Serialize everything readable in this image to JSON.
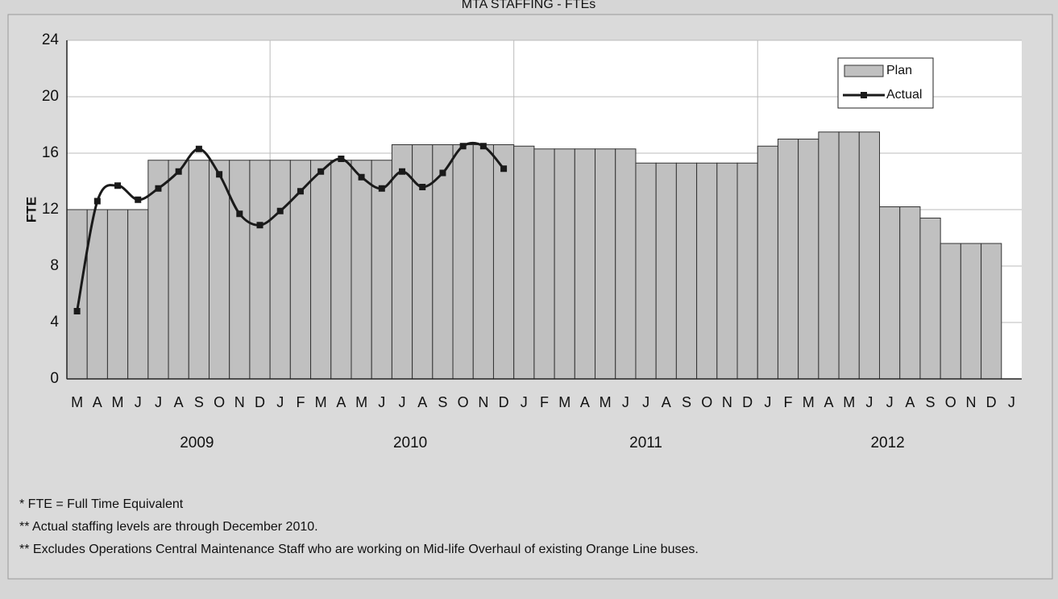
{
  "chart_data": {
    "type": "bar-line",
    "title": "MTA STAFFING - FTEs",
    "y_label": "FTE",
    "categories": [
      "M",
      "A",
      "M",
      "J",
      "J",
      "A",
      "S",
      "O",
      "N",
      "D",
      "J",
      "F",
      "M",
      "A",
      "M",
      "J",
      "J",
      "A",
      "S",
      "O",
      "N",
      "D",
      "J",
      "F",
      "M",
      "A",
      "M",
      "J",
      "J",
      "A",
      "S",
      "O",
      "N",
      "D",
      "J",
      "F",
      "M",
      "A",
      "M",
      "J",
      "J",
      "A",
      "S",
      "O",
      "N",
      "D",
      "J"
    ],
    "x_groups": [
      "2009",
      "2010",
      "2011",
      "2012"
    ],
    "series": [
      {
        "name": "Plan",
        "type": "bar",
        "color": "#c0c0c0",
        "values": [
          12,
          12,
          12,
          12,
          15.5,
          15.5,
          15.5,
          15.5,
          15.5,
          15.5,
          15.5,
          15.5,
          15.5,
          15.5,
          15.5,
          15.5,
          16.6,
          16.6,
          16.6,
          16.6,
          16.6,
          16.6,
          16.5,
          16.3,
          16.3,
          16.3,
          16.3,
          16.3,
          15.3,
          15.3,
          15.3,
          15.3,
          15.3,
          15.3,
          16.5,
          17,
          17,
          17.5,
          17.5,
          17.5,
          12.2,
          12.2,
          11.4,
          9.6,
          9.6,
          9.6,
          null
        ]
      },
      {
        "name": "Actual",
        "type": "line",
        "color": "#1a1a1a",
        "values": [
          4.8,
          12.6,
          13.7,
          12.7,
          13.5,
          14.7,
          16.3,
          14.5,
          11.7,
          10.9,
          11.9,
          13.3,
          14.7,
          15.6,
          14.3,
          13.5,
          14.7,
          13.6,
          14.6,
          16.5,
          16.5,
          14.9,
          null,
          null,
          null,
          null,
          null,
          null,
          null,
          null,
          null,
          null,
          null,
          null,
          null,
          null,
          null,
          null,
          null,
          null,
          null,
          null,
          null,
          null,
          null,
          null,
          null
        ]
      }
    ],
    "ylim": [
      0,
      24
    ],
    "yticks": [
      0,
      4,
      8,
      12,
      16,
      20,
      24
    ],
    "grid": true,
    "legend": "top-right",
    "footnotes": [
      "* FTE = Full Time Equivalent",
      "** Actual staffing levels are through December 2010.",
      "** Excludes Operations Central Maintenance Staff who are working on Mid-life Overhaul of existing Orange Line buses."
    ]
  }
}
